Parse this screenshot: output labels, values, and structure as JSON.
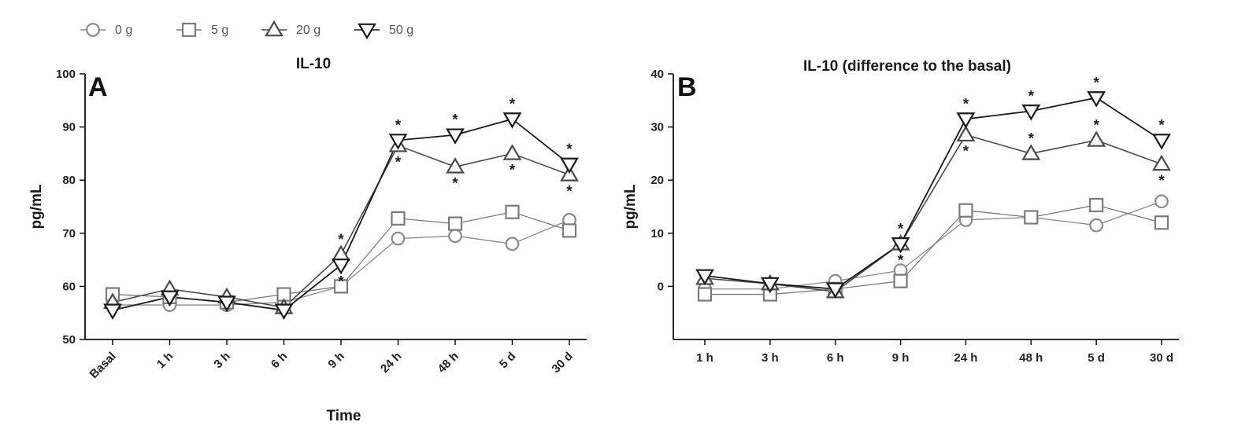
{
  "colors": {
    "axis": "#111111",
    "series_0g": "#8a8a8a",
    "series_5g": "#7a7a7a",
    "series_20g": "#4a4a4a",
    "series_50g": "#1a1a1a"
  },
  "legend": [
    {
      "label": "0 g",
      "marker": "circle"
    },
    {
      "label": "5 g",
      "marker": "square"
    },
    {
      "label": "20 g",
      "marker": "triangle-up"
    },
    {
      "label": "50 g",
      "marker": "triangle-down"
    }
  ],
  "chart_data": [
    {
      "panel": "A",
      "type": "line",
      "title": "IL-10",
      "xlabel": "Time",
      "ylabel": "pg/mL",
      "ylim": [
        50,
        100
      ],
      "yticks": [
        50,
        60,
        70,
        80,
        90,
        100
      ],
      "categories": [
        "Basal",
        "1 h",
        "3 h",
        "6 h",
        "9 h",
        "24 h",
        "48 h",
        "5 d",
        "30 d"
      ],
      "series": [
        {
          "name": "0 g",
          "marker": "circle",
          "values": [
            56.5,
            56.5,
            56.5,
            57,
            60,
            69,
            69.5,
            68,
            72.5
          ]
        },
        {
          "name": "5 g",
          "marker": "square",
          "values": [
            58.5,
            58,
            57,
            58.5,
            60,
            72.8,
            71.8,
            74,
            70.5
          ]
        },
        {
          "name": "20 g",
          "marker": "triangle-up",
          "values": [
            57,
            59.5,
            58,
            56,
            66,
            86.5,
            82.5,
            85,
            81
          ]
        },
        {
          "name": "50 g",
          "marker": "triangle-down",
          "values": [
            55.5,
            58,
            57,
            55.5,
            64,
            87.5,
            88.5,
            91.5,
            83
          ]
        }
      ],
      "significance": [
        {
          "category": "9 h",
          "series": "20 g",
          "position": "above",
          "label": "*"
        },
        {
          "category": "9 h",
          "series": "50 g",
          "position": "below",
          "label": "*"
        },
        {
          "category": "24 h",
          "series": "50 g",
          "position": "above",
          "label": "*"
        },
        {
          "category": "24 h",
          "series": "20 g",
          "position": "below",
          "label": "*"
        },
        {
          "category": "48 h",
          "series": "50 g",
          "position": "above",
          "label": "*"
        },
        {
          "category": "48 h",
          "series": "20 g",
          "position": "below",
          "label": "*"
        },
        {
          "category": "5 d",
          "series": "50 g",
          "position": "above",
          "label": "*"
        },
        {
          "category": "5 d",
          "series": "20 g",
          "position": "below",
          "label": "*"
        },
        {
          "category": "30 d",
          "series": "50 g",
          "position": "above",
          "label": "*"
        },
        {
          "category": "30 d",
          "series": "20 g",
          "position": "below",
          "label": "*"
        }
      ]
    },
    {
      "panel": "B",
      "type": "line",
      "title": "IL-10 (difference to the basal)",
      "xlabel": "",
      "ylabel": "pg/mL",
      "ylim": [
        -10,
        40
      ],
      "yticks": [
        0,
        10,
        20,
        30,
        40
      ],
      "categories": [
        "1 h",
        "3 h",
        "6 h",
        "9 h",
        "24 h",
        "48 h",
        "5 d",
        "30 d"
      ],
      "series": [
        {
          "name": "0 g",
          "marker": "circle",
          "values": [
            -0.5,
            -0.5,
            1,
            3,
            12.5,
            13,
            11.5,
            16
          ]
        },
        {
          "name": "5 g",
          "marker": "square",
          "values": [
            -1.5,
            -1.5,
            -0.5,
            1,
            14.3,
            13,
            15.3,
            12
          ]
        },
        {
          "name": "20 g",
          "marker": "triangle-up",
          "values": [
            1.5,
            0.5,
            -1,
            8,
            28.5,
            25,
            27.5,
            23
          ]
        },
        {
          "name": "50 g",
          "marker": "triangle-down",
          "values": [
            2,
            0.5,
            -0.5,
            8,
            31.5,
            33,
            35.5,
            27.5
          ]
        }
      ],
      "significance": [
        {
          "category": "9 h",
          "series": "50 g",
          "position": "above",
          "label": "*"
        },
        {
          "category": "9 h",
          "series": "20 g",
          "position": "below",
          "label": "*"
        },
        {
          "category": "24 h",
          "series": "50 g",
          "position": "above",
          "label": "*"
        },
        {
          "category": "24 h",
          "series": "20 g",
          "position": "below",
          "label": "*"
        },
        {
          "category": "48 h",
          "series": "50 g",
          "position": "above",
          "label": "*"
        },
        {
          "category": "48 h",
          "series": "20 g",
          "position": "above",
          "label": "*"
        },
        {
          "category": "5 d",
          "series": "50 g",
          "position": "above",
          "label": "*"
        },
        {
          "category": "5 d",
          "series": "20 g",
          "position": "above",
          "label": "*"
        },
        {
          "category": "30 d",
          "series": "50 g",
          "position": "above",
          "label": "*"
        },
        {
          "category": "30 d",
          "series": "20 g",
          "position": "below",
          "label": "*"
        }
      ]
    }
  ]
}
